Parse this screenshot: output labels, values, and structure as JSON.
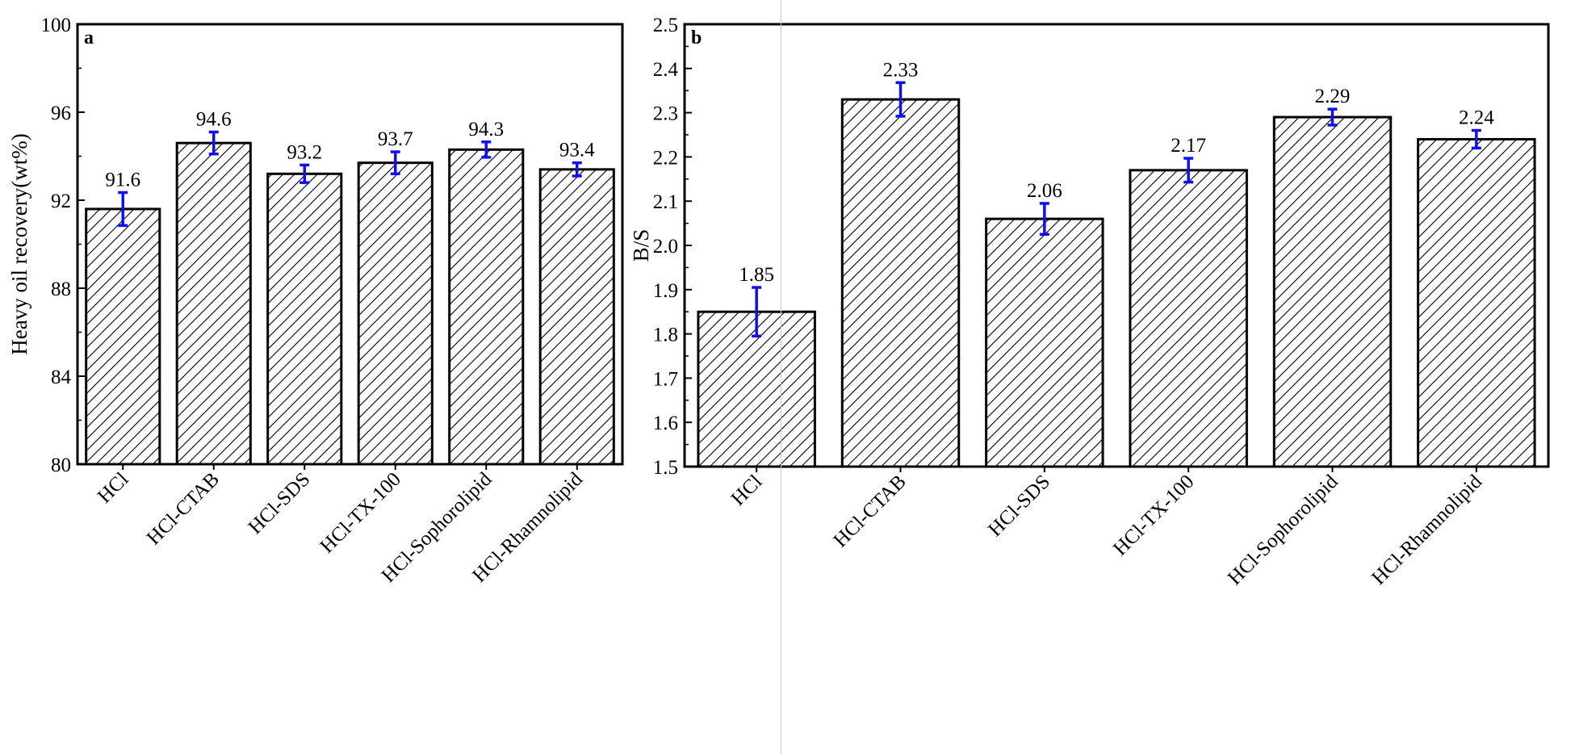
{
  "chart_data": [
    {
      "type": "bar",
      "panel_label": "a",
      "title": "",
      "xlabel": "",
      "ylabel": "Heavy oil recovery(wt%)",
      "ylim": [
        80,
        100
      ],
      "yticks": [
        "80",
        "84",
        "88",
        "92",
        "96",
        "100"
      ],
      "categories": [
        "HCl",
        "HCl-CTAB",
        "HCl-SDS",
        "HCl-TX-100",
        "HCl-Sophorolipid",
        "HCl-Rhamnolipid"
      ],
      "values": [
        91.6,
        94.6,
        93.2,
        93.7,
        94.3,
        93.4
      ],
      "value_labels": [
        "91.6",
        "94.6",
        "93.2",
        "93.7",
        "94.3",
        "93.4"
      ],
      "errors": [
        0.75,
        0.5,
        0.4,
        0.5,
        0.35,
        0.3
      ],
      "bar_pattern": "diagonal-hatch",
      "error_bar_color": "#1010ee",
      "grid": false
    },
    {
      "type": "bar",
      "panel_label": "b",
      "title": "",
      "xlabel": "",
      "ylabel": "B/S",
      "ylim": [
        1.5,
        2.5
      ],
      "yticks": [
        "1.5",
        "1.6",
        "1.7",
        "1.8",
        "1.9",
        "2.0",
        "2.1",
        "2.2",
        "2.3",
        "2.4",
        "2.5"
      ],
      "categories": [
        "HCl",
        "HCl-CTAB",
        "HCl-SDS",
        "HCl-TX-100",
        "HCl-Sophorolipid",
        "HCl-Rhamnolipid"
      ],
      "values": [
        1.85,
        2.33,
        2.06,
        2.17,
        2.29,
        2.24
      ],
      "value_labels": [
        "1.85",
        "2.33",
        "2.06",
        "2.17",
        "2.29",
        "2.24"
      ],
      "errors": [
        0.055,
        0.038,
        0.035,
        0.027,
        0.018,
        0.02
      ],
      "bar_pattern": "diagonal-hatch",
      "error_bar_color": "#1010ee",
      "grid": false
    }
  ]
}
